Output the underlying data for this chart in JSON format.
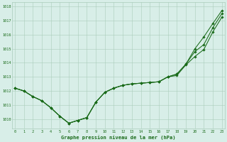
{
  "xlabel": "Graphe pression niveau de la mer (hPa)",
  "hours": [
    0,
    1,
    2,
    3,
    4,
    5,
    6,
    7,
    8,
    9,
    10,
    11,
    12,
    13,
    14,
    15,
    16,
    17,
    18,
    19,
    20,
    21,
    22,
    23
  ],
  "seriesA": [
    1012.2,
    1012.0,
    1011.6,
    1011.3,
    1010.8,
    1010.2,
    1009.7,
    1009.9,
    1010.1,
    1011.2,
    1011.9,
    1012.2,
    1012.4,
    1012.5,
    1012.55,
    1012.6,
    1012.65,
    1013.0,
    1013.1,
    1013.85,
    1014.45,
    1014.95,
    1016.2,
    1017.25
  ],
  "seriesB": [
    1012.2,
    1012.0,
    1011.6,
    1011.3,
    1010.8,
    1010.2,
    1009.7,
    1009.9,
    1010.1,
    1011.2,
    1011.9,
    1012.2,
    1012.4,
    1012.5,
    1012.55,
    1012.6,
    1012.65,
    1013.0,
    1013.2,
    1013.9,
    1015.0,
    1015.85,
    1016.8,
    1017.72
  ],
  "seriesC": [
    1012.2,
    1012.0,
    1011.6,
    1011.3,
    1010.8,
    1010.2,
    1009.7,
    1009.9,
    1010.1,
    1011.2,
    1011.9,
    1012.2,
    1012.4,
    1012.5,
    1012.55,
    1012.6,
    1012.65,
    1013.0,
    1013.2,
    1013.9,
    1014.8,
    1015.3,
    1016.5,
    1017.5
  ],
  "line_color": "#1a6b1a",
  "bg_color": "#d8eee8",
  "grid_color": "#aaccbb",
  "text_color": "#1a6b1a",
  "ylim_min": 1009.3,
  "ylim_max": 1018.3,
  "yticks": [
    1010,
    1011,
    1012,
    1013,
    1014,
    1015,
    1016,
    1017,
    1018
  ],
  "xlim_min": -0.3,
  "xlim_max": 23.3,
  "fig_width": 3.2,
  "fig_height": 2.0,
  "dpi": 100
}
